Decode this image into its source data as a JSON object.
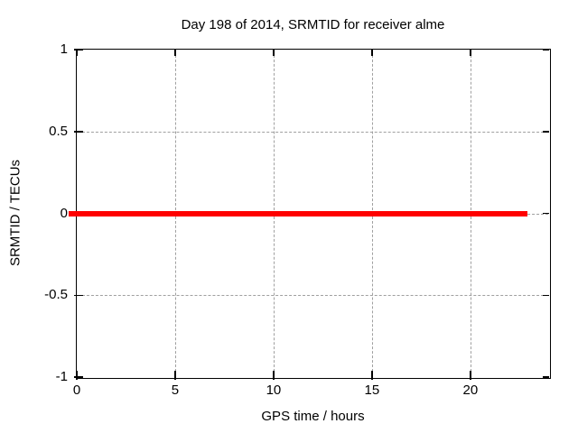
{
  "chart_data": {
    "type": "line",
    "title": "Day 198 of 2014, SRMTID for receiver alme",
    "xlabel": "GPS time / hours",
    "ylabel": "SRMTID / TECUs",
    "xlim": [
      0,
      24
    ],
    "ylim": [
      -1,
      1
    ],
    "x_ticks": [
      0,
      5,
      10,
      15,
      20
    ],
    "x_tick_labels": [
      "0",
      "5",
      "10",
      "15",
      "20"
    ],
    "y_ticks": [
      1,
      0.5,
      0,
      -0.5,
      -1
    ],
    "y_tick_labels": [
      "1",
      "0.5",
      "0",
      "-0.5",
      "-1"
    ],
    "grid": true,
    "legend_position": "none",
    "series": [
      {
        "name": "SRMTID",
        "color": "#ff0000",
        "x": [
          0,
          22.9
        ],
        "y": [
          0,
          0
        ]
      }
    ]
  },
  "colors": {
    "background": "#ffffff",
    "axis": "#000000",
    "grid": "#a0a0a0",
    "series": "#ff0000"
  }
}
